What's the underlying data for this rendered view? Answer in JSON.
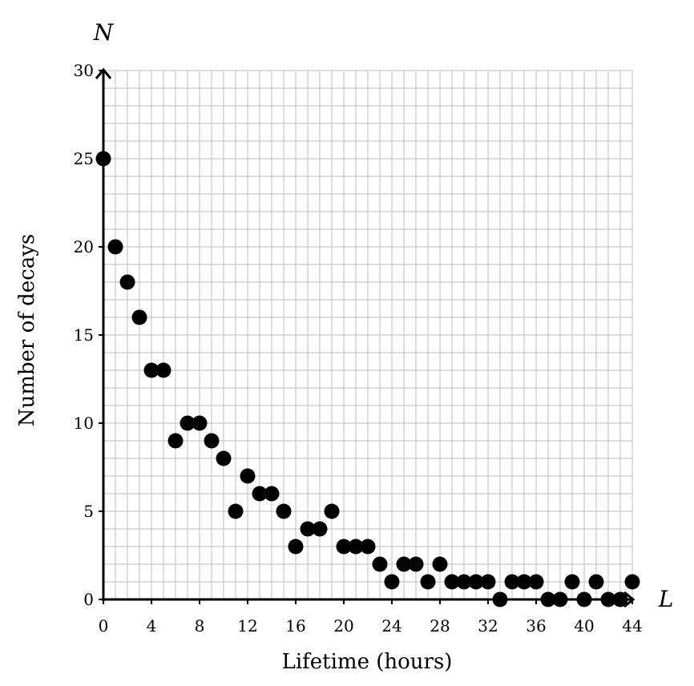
{
  "chart_data": {
    "type": "scatter",
    "title": "",
    "xlabel": "Lifetime (hours)",
    "ylabel": "Number of decays",
    "x_axis_symbol": "L",
    "y_axis_symbol": "N",
    "xlim": [
      0,
      44
    ],
    "ylim": [
      0,
      30
    ],
    "x_ticks": [
      0,
      4,
      8,
      12,
      16,
      20,
      24,
      28,
      32,
      36,
      40,
      44
    ],
    "y_ticks": [
      0,
      5,
      10,
      15,
      20,
      25,
      30
    ],
    "x_tick_labels": [
      "0",
      "4",
      "8",
      "12",
      "16",
      "20",
      "24",
      "28",
      "32",
      "36",
      "40",
      "44"
    ],
    "y_tick_labels": [
      "0",
      "5",
      "10",
      "15",
      "20",
      "25",
      "30"
    ],
    "grid": true,
    "x_minor_step": 1,
    "y_minor_step": 1,
    "point_color": "#000000",
    "grid_color": "#bdbdbd",
    "points": [
      {
        "x": 0,
        "y": 25
      },
      {
        "x": 1,
        "y": 20
      },
      {
        "x": 2,
        "y": 18
      },
      {
        "x": 3,
        "y": 16
      },
      {
        "x": 4,
        "y": 13
      },
      {
        "x": 5,
        "y": 13
      },
      {
        "x": 6,
        "y": 9
      },
      {
        "x": 7,
        "y": 10
      },
      {
        "x": 8,
        "y": 10
      },
      {
        "x": 9,
        "y": 9
      },
      {
        "x": 10,
        "y": 8
      },
      {
        "x": 11,
        "y": 5
      },
      {
        "x": 12,
        "y": 7
      },
      {
        "x": 13,
        "y": 6
      },
      {
        "x": 14,
        "y": 6
      },
      {
        "x": 15,
        "y": 5
      },
      {
        "x": 16,
        "y": 3
      },
      {
        "x": 17,
        "y": 4
      },
      {
        "x": 18,
        "y": 4
      },
      {
        "x": 19,
        "y": 5
      },
      {
        "x": 20,
        "y": 3
      },
      {
        "x": 21,
        "y": 3
      },
      {
        "x": 22,
        "y": 3
      },
      {
        "x": 23,
        "y": 2
      },
      {
        "x": 24,
        "y": 1
      },
      {
        "x": 25,
        "y": 2
      },
      {
        "x": 26,
        "y": 2
      },
      {
        "x": 27,
        "y": 1
      },
      {
        "x": 28,
        "y": 2
      },
      {
        "x": 29,
        "y": 1
      },
      {
        "x": 30,
        "y": 1
      },
      {
        "x": 31,
        "y": 1
      },
      {
        "x": 32,
        "y": 1
      },
      {
        "x": 33,
        "y": 0
      },
      {
        "x": 34,
        "y": 1
      },
      {
        "x": 35,
        "y": 1
      },
      {
        "x": 36,
        "y": 1
      },
      {
        "x": 37,
        "y": 0
      },
      {
        "x": 38,
        "y": 0
      },
      {
        "x": 39,
        "y": 1
      },
      {
        "x": 40,
        "y": 0
      },
      {
        "x": 41,
        "y": 1
      },
      {
        "x": 42,
        "y": 0
      },
      {
        "x": 43,
        "y": 0
      },
      {
        "x": 44,
        "y": 1
      }
    ]
  }
}
